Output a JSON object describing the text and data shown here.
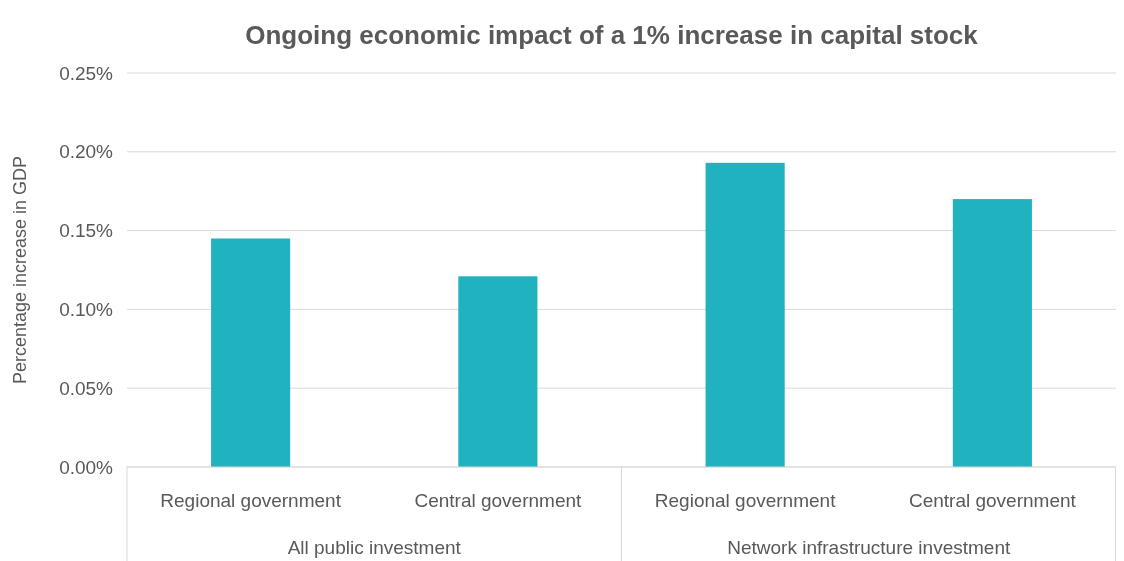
{
  "chart_data": {
    "type": "bar",
    "title": "Ongoing economic impact of a 1% increase in capital stock",
    "ylabel": "Percentage increase in GDP",
    "categories": [
      "Regional government",
      "Central government",
      "Regional government",
      "Central government"
    ],
    "values": [
      0.145,
      0.121,
      0.193,
      0.17
    ],
    "color": "#20b2bf",
    "ylim": [
      0,
      0.25
    ],
    "yticks": [
      {
        "value": 0,
        "label": "0.00%"
      },
      {
        "value": 0.05,
        "label": "0.05%"
      },
      {
        "value": 0.1,
        "label": "0.10%"
      },
      {
        "value": 0.15,
        "label": "0.15%"
      },
      {
        "value": 0.2,
        "label": "0.20%"
      },
      {
        "value": 0.25,
        "label": "0.25%"
      }
    ],
    "grid": "y",
    "annotations": [
      "All public investment",
      "Network infrastructure investment"
    ]
  }
}
